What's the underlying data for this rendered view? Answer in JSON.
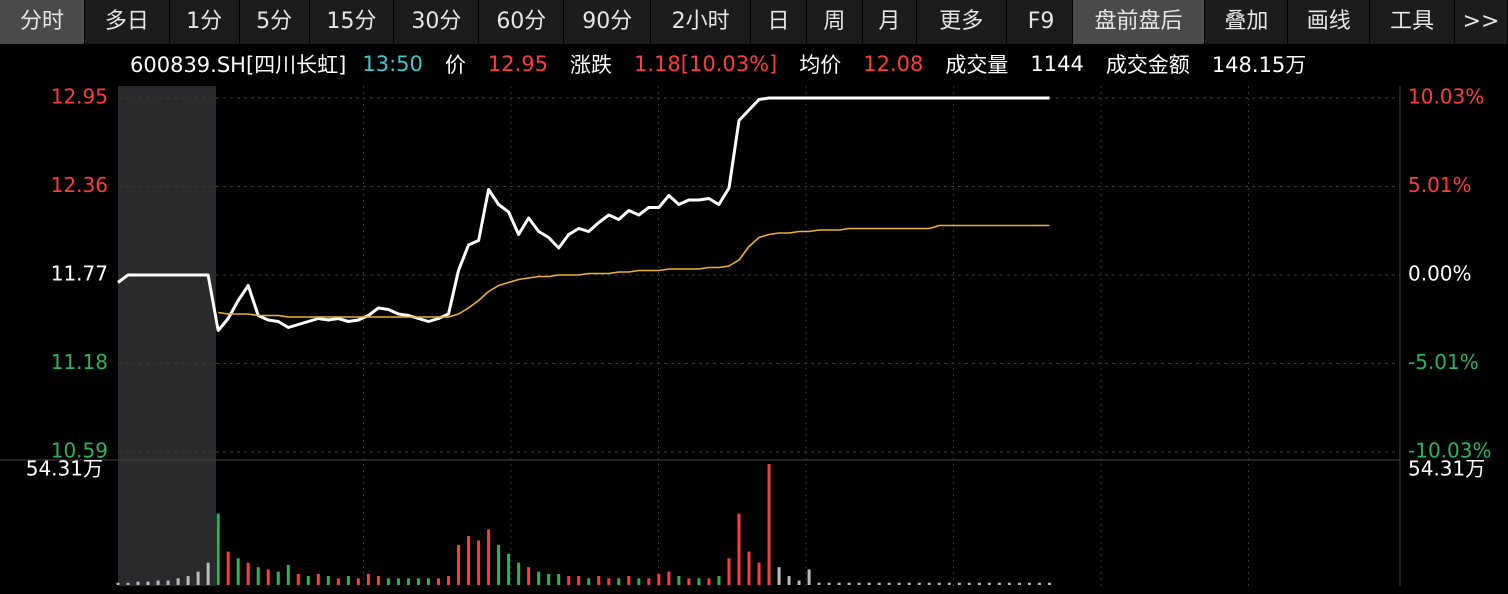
{
  "toolbar": {
    "tabs": [
      {
        "label": "分时",
        "active": true
      },
      {
        "label": "多日",
        "active": false
      },
      {
        "label": "1分",
        "active": false
      },
      {
        "label": "5分",
        "active": false
      },
      {
        "label": "15分",
        "active": false
      },
      {
        "label": "30分",
        "active": false
      },
      {
        "label": "60分",
        "active": false
      },
      {
        "label": "90分",
        "active": false
      },
      {
        "label": "2小时",
        "active": false
      },
      {
        "label": "日",
        "active": false
      },
      {
        "label": "周",
        "active": false
      },
      {
        "label": "月",
        "active": false
      },
      {
        "label": "更多",
        "active": false
      },
      {
        "label": "F9",
        "active": false
      },
      {
        "label": "盘前盘后",
        "active": true
      },
      {
        "label": "叠加",
        "active": false
      },
      {
        "label": "画线",
        "active": false
      },
      {
        "label": "工具",
        "active": false
      },
      {
        "label": ">>",
        "active": false
      }
    ]
  },
  "info_bar": {
    "code": "600839.SH[四川长虹]",
    "time": "13:50",
    "fields": [
      {
        "label": "价",
        "value": "12.95",
        "color": "#ff3b3b"
      },
      {
        "label": "涨跌",
        "value": "1.18[10.03%]",
        "color": "#ff3b3b"
      },
      {
        "label": "均价",
        "value": "12.08",
        "color": "#ff3b3b"
      },
      {
        "label": "成交量",
        "value": "1144",
        "color": "#ffffff"
      },
      {
        "label": "成交金额",
        "value": "148.15万",
        "color": "#ffffff"
      }
    ]
  },
  "chart_data": [
    {
      "type": "line",
      "x": [
        0,
        1,
        2,
        3,
        4,
        5,
        6,
        7,
        8,
        9,
        10,
        11,
        12,
        13,
        14,
        15,
        16,
        17,
        18,
        19,
        20,
        21,
        22,
        23,
        24,
        25,
        26,
        27,
        28,
        29,
        30,
        31,
        32,
        33,
        34,
        35,
        36,
        37,
        38,
        39,
        40,
        41,
        42,
        43,
        44,
        45,
        46,
        47,
        48,
        49,
        50,
        51,
        52,
        53,
        54,
        55,
        56,
        57,
        58,
        59,
        60,
        61,
        62,
        63,
        64,
        65,
        66,
        67,
        68,
        69,
        70,
        71,
        72,
        73,
        74,
        75,
        76,
        77,
        78,
        79,
        80,
        81,
        82,
        83,
        84,
        85,
        86,
        87,
        88,
        89,
        90,
        91,
        92,
        93
      ],
      "xlim": [
        0,
        128
      ],
      "series": [
        {
          "color": "#ffffff",
          "values": [
            11.72,
            11.77,
            11.77,
            11.77,
            11.77,
            11.77,
            11.77,
            11.77,
            11.77,
            11.77,
            11.4,
            11.48,
            11.6,
            11.7,
            11.5,
            11.47,
            11.46,
            11.42,
            11.44,
            11.46,
            11.48,
            11.47,
            11.48,
            11.46,
            11.47,
            11.5,
            11.55,
            11.54,
            11.51,
            11.5,
            11.48,
            11.46,
            11.48,
            11.51,
            11.8,
            11.97,
            12.0,
            12.34,
            12.24,
            12.19,
            12.04,
            12.15,
            12.06,
            12.02,
            11.95,
            12.04,
            12.08,
            12.06,
            12.12,
            12.17,
            12.14,
            12.2,
            12.17,
            12.22,
            12.22,
            12.3,
            12.24,
            12.27,
            12.27,
            12.28,
            12.24,
            12.35,
            12.8,
            12.87,
            12.94,
            12.95,
            12.95,
            12.95,
            12.95,
            12.95,
            12.95,
            12.95,
            12.95,
            12.95,
            12.95,
            12.95,
            12.95,
            12.95,
            12.95,
            12.95,
            12.95,
            12.95,
            12.95,
            12.95,
            12.95,
            12.95,
            12.95,
            12.95,
            12.95,
            12.95,
            12.95,
            12.95,
            12.95,
            12.95
          ]
        },
        {
          "color": "#f0b030",
          "values": [
            null,
            null,
            null,
            null,
            null,
            null,
            null,
            null,
            null,
            null,
            11.52,
            11.51,
            11.51,
            11.51,
            11.5,
            11.5,
            11.5,
            11.49,
            11.49,
            11.49,
            11.49,
            11.49,
            11.49,
            11.49,
            11.49,
            11.49,
            11.49,
            11.49,
            11.49,
            11.49,
            11.49,
            11.49,
            11.49,
            11.49,
            11.51,
            11.55,
            11.6,
            11.66,
            11.7,
            11.72,
            11.74,
            11.75,
            11.76,
            11.76,
            11.77,
            11.77,
            11.77,
            11.78,
            11.78,
            11.78,
            11.79,
            11.79,
            11.8,
            11.8,
            11.8,
            11.81,
            11.81,
            11.81,
            11.81,
            11.82,
            11.82,
            11.83,
            11.87,
            11.96,
            12.02,
            12.04,
            12.05,
            12.05,
            12.06,
            12.06,
            12.07,
            12.07,
            12.07,
            12.08,
            12.08,
            12.08,
            12.08,
            12.08,
            12.08,
            12.08,
            12.08,
            12.08,
            12.1,
            12.1,
            12.1,
            12.1,
            12.1,
            12.1,
            12.1,
            12.1,
            12.1,
            12.1,
            12.1,
            12.1
          ]
        }
      ],
      "ylim": [
        10.59,
        12.95
      ],
      "yticks": [
        12.95,
        12.36,
        11.77,
        11.18,
        10.59
      ],
      "y2lim": [
        -10.03,
        10.03
      ],
      "y2ticks": [
        {
          "value": 10.03,
          "label": "10.03%"
        },
        {
          "value": 5.01,
          "label": "5.01%"
        },
        {
          "value": 0,
          "label": "0.00%"
        },
        {
          "value": -5.01,
          "label": "-5.01%"
        },
        {
          "value": -10.03,
          "label": "-10.03%"
        }
      ],
      "grid": true
    },
    {
      "type": "bar",
      "x": [
        0,
        1,
        2,
        3,
        4,
        5,
        6,
        7,
        8,
        9,
        10,
        11,
        12,
        13,
        14,
        15,
        16,
        17,
        18,
        19,
        20,
        21,
        22,
        23,
        24,
        25,
        26,
        27,
        28,
        29,
        30,
        31,
        32,
        33,
        34,
        35,
        36,
        37,
        38,
        39,
        40,
        41,
        42,
        43,
        44,
        45,
        46,
        47,
        48,
        49,
        50,
        51,
        52,
        53,
        54,
        55,
        56,
        57,
        58,
        59,
        60,
        61,
        62,
        63,
        64,
        65,
        66,
        67,
        68,
        69,
        70,
        71,
        72,
        73,
        74,
        75,
        76,
        77,
        78,
        79,
        80,
        81,
        82,
        83,
        84,
        85,
        86,
        87,
        88,
        89,
        90,
        91,
        92,
        93
      ],
      "xlim": [
        0,
        128
      ],
      "values": [
        1,
        1,
        1.5,
        1.5,
        2,
        2,
        3,
        4,
        6,
        10,
        32,
        15,
        12,
        10,
        8,
        7,
        6,
        9,
        5,
        4,
        5,
        4,
        3,
        4,
        3,
        5,
        4,
        3,
        3,
        3,
        3,
        3,
        3,
        4,
        18,
        22,
        20,
        25,
        18,
        14,
        10,
        8,
        6,
        5,
        5,
        4,
        4,
        3,
        4,
        3,
        3,
        4,
        3,
        3,
        5,
        6,
        4,
        3,
        3,
        3,
        4,
        12,
        32,
        15,
        10,
        54.31,
        8,
        4,
        2,
        7,
        1,
        1,
        1,
        1,
        1,
        1,
        1,
        1,
        1,
        1,
        1,
        1,
        1,
        1,
        1,
        1,
        1,
        1,
        1,
        1,
        1,
        1,
        1,
        1
      ],
      "colors": [
        "#bbbbbb",
        "#bbbbbb",
        "#bbbbbb",
        "#bbbbbb",
        "#bbbbbb",
        "#bbbbbb",
        "#bbbbbb",
        "#bbbbbb",
        "#bbbbbb",
        "#bbbbbb",
        "#2bb55a",
        "#ff3b3b",
        "#2bb55a",
        "#ff3b3b",
        "#2bb55a",
        "#ff3b3b",
        "#2bb55a",
        "#2bb55a",
        "#ff3b3b",
        "#2bb55a",
        "#ff3b3b",
        "#2bb55a",
        "#ff3b3b",
        "#2bb55a",
        "#ff3b3b",
        "#ff3b3b",
        "#ff3b3b",
        "#2bb55a",
        "#2bb55a",
        "#2bb55a",
        "#2bb55a",
        "#2bb55a",
        "#ff3b3b",
        "#ff3b3b",
        "#ff3b3b",
        "#ff3b3b",
        "#ff3b3b",
        "#ff3b3b",
        "#2bb55a",
        "#2bb55a",
        "#2bb55a",
        "#ff3b3b",
        "#2bb55a",
        "#2bb55a",
        "#2bb55a",
        "#ff3b3b",
        "#ff3b3b",
        "#2bb55a",
        "#ff3b3b",
        "#ff3b3b",
        "#2bb55a",
        "#ff3b3b",
        "#2bb55a",
        "#ff3b3b",
        "#ff3b3b",
        "#ff3b3b",
        "#2bb55a",
        "#ff3b3b",
        "#2bb55a",
        "#ff3b3b",
        "#2bb55a",
        "#ff3b3b",
        "#ff3b3b",
        "#ff3b3b",
        "#ff3b3b",
        "#ff3b3b",
        "#bbbbbb",
        "#bbbbbb",
        "#bbbbbb",
        "#bbbbbb",
        "#bbbbbb",
        "#bbbbbb",
        "#bbbbbb",
        "#bbbbbb",
        "#bbbbbb",
        "#bbbbbb",
        "#bbbbbb",
        "#bbbbbb",
        "#bbbbbb",
        "#bbbbbb",
        "#bbbbbb",
        "#bbbbbb",
        "#bbbbbb",
        "#bbbbbb",
        "#bbbbbb",
        "#bbbbbb",
        "#bbbbbb",
        "#bbbbbb",
        "#bbbbbb",
        "#bbbbbb",
        "#bbbbbb",
        "#bbbbbb",
        "#bbbbbb",
        "#bbbbbb"
      ],
      "ylim": [
        0,
        54.31
      ],
      "yticks": [
        {
          "value": 54.31,
          "label": "54.31万"
        }
      ]
    }
  ]
}
